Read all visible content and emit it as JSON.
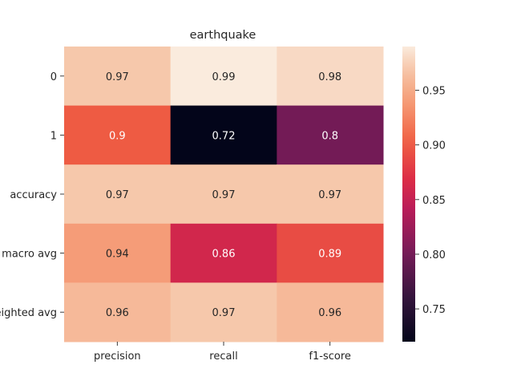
{
  "chart_data": {
    "type": "heatmap",
    "title": "earthquake",
    "xlabel": "",
    "ylabel": "",
    "columns": [
      "precision",
      "recall",
      "f1-score"
    ],
    "rows": [
      "0",
      "1",
      "accuracy",
      "macro avg",
      "weighted avg"
    ],
    "values": [
      [
        0.97,
        0.99,
        0.98
      ],
      [
        0.9,
        0.72,
        0.8
      ],
      [
        0.97,
        0.97,
        0.97
      ],
      [
        0.94,
        0.86,
        0.89
      ],
      [
        0.96,
        0.97,
        0.96
      ]
    ],
    "labels": [
      [
        "0.97",
        "0.99",
        "0.98"
      ],
      [
        "0.9",
        "0.72",
        "0.8"
      ],
      [
        "0.97",
        "0.97",
        "0.97"
      ],
      [
        "0.94",
        "0.86",
        "0.89"
      ],
      [
        "0.96",
        "0.97",
        "0.96"
      ]
    ],
    "colorbar": {
      "vmin": 0.72,
      "vmax": 0.99,
      "ticks": [
        "0.75",
        "0.80",
        "0.85",
        "0.90",
        "0.95"
      ],
      "colormap": "rocket"
    }
  }
}
